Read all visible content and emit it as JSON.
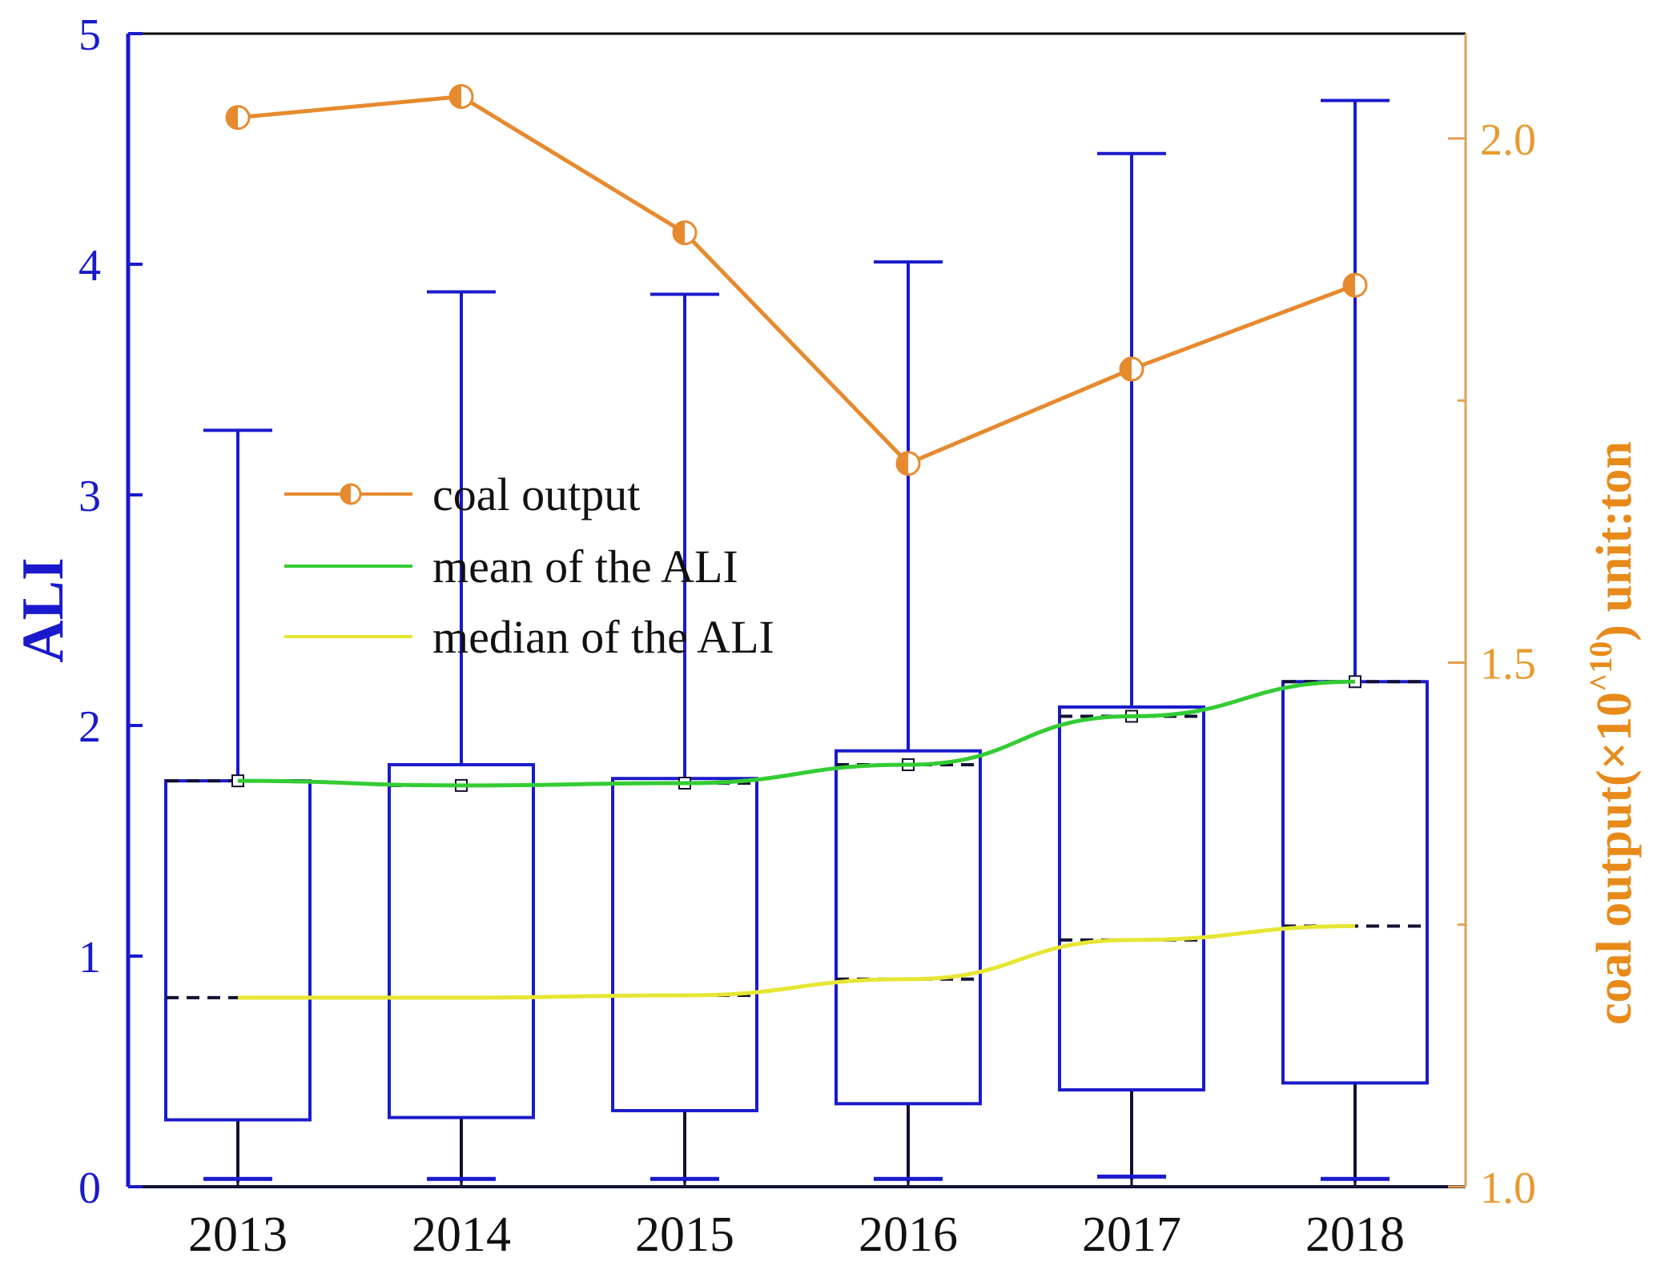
{
  "chart_data": {
    "type": "box",
    "title": "",
    "xlabel": "",
    "ylabel_left": "ALI",
    "ylabel_right_main": "coal output(×10",
    "ylabel_right_sup": "^10",
    "ylabel_right_tail": ")  unit:ton",
    "categories": [
      "2013",
      "2014",
      "2015",
      "2016",
      "2017",
      "2018"
    ],
    "ylim_left": [
      0,
      5
    ],
    "yticks_left": [
      "0",
      "1",
      "2",
      "3",
      "4",
      "5"
    ],
    "ylim_right": [
      1.0,
      2.1
    ],
    "yticks_right": [
      "1.0",
      "1.5",
      "2.0"
    ],
    "boxes": [
      {
        "year": "2013",
        "min": 0.02,
        "q1": 0.29,
        "median": 0.82,
        "q3": 1.76,
        "max": 3.28,
        "mean": 1.76
      },
      {
        "year": "2014",
        "min": 0.02,
        "q1": 0.3,
        "median": 0.82,
        "q3": 1.83,
        "max": 3.88,
        "mean": 1.74
      },
      {
        "year": "2015",
        "min": 0.02,
        "q1": 0.33,
        "median": 0.83,
        "q3": 1.77,
        "max": 3.87,
        "mean": 1.75
      },
      {
        "year": "2016",
        "min": 0.02,
        "q1": 0.36,
        "median": 0.9,
        "q3": 1.89,
        "max": 4.01,
        "mean": 1.83
      },
      {
        "year": "2017",
        "min": 0.03,
        "q1": 0.42,
        "median": 1.07,
        "q3": 2.08,
        "max": 4.48,
        "mean": 2.04
      },
      {
        "year": "2018",
        "min": 0.02,
        "q1": 0.45,
        "median": 1.13,
        "q3": 2.19,
        "max": 4.71,
        "mean": 2.19
      }
    ],
    "series": [
      {
        "name": "coal output",
        "axis": "right",
        "values": [
          2.02,
          2.04,
          1.91,
          1.69,
          1.78,
          1.86
        ]
      },
      {
        "name": "mean of the ALI",
        "axis": "left",
        "values": [
          1.76,
          1.74,
          1.75,
          1.83,
          2.04,
          2.19
        ]
      },
      {
        "name": "median of the ALI",
        "axis": "left",
        "values": [
          0.82,
          0.82,
          0.83,
          0.9,
          1.07,
          1.13
        ]
      }
    ],
    "legend": {
      "position": "upper-left",
      "entries": [
        "coal output",
        "mean of the ALI",
        "median of the ALI"
      ]
    },
    "colors": {
      "box": "#1a1acc",
      "axis_left": "#1a1acc",
      "axis_right": "#e0a050",
      "coal": "#e68a2e",
      "mean": "#33cc33",
      "median": "#e6e633",
      "median_dash": "#111133"
    }
  }
}
